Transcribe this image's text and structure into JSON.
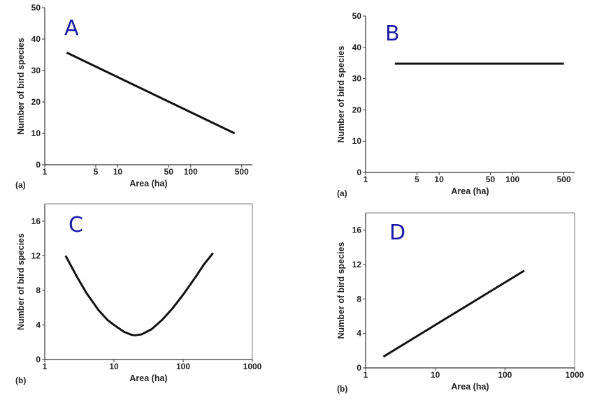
{
  "chart_data": [
    {
      "type": "line",
      "panel_label": "A",
      "subfigure_label": "(a)",
      "xlabel": "Area (ha)",
      "ylabel": "Number of bird species",
      "x_scale": "log",
      "xlim": [
        1,
        700
      ],
      "ylim": [
        0,
        50
      ],
      "x_ticks": [
        1,
        5,
        10,
        50,
        100,
        500
      ],
      "y_ticks": [
        0,
        10,
        20,
        30,
        40,
        50
      ],
      "series": [
        {
          "x": [
            2,
            400
          ],
          "y": [
            35.7,
            10
          ]
        }
      ]
    },
    {
      "type": "line",
      "panel_label": "B",
      "subfigure_label": "(a)",
      "xlabel": "Area (ha)",
      "ylabel": "Number of bird species",
      "x_scale": "log",
      "xlim": [
        1,
        700
      ],
      "ylim": [
        0,
        50
      ],
      "x_ticks": [
        1,
        5,
        10,
        50,
        100,
        500
      ],
      "y_ticks": [
        0,
        10,
        20,
        30,
        40,
        50
      ],
      "series": [
        {
          "x": [
            2.5,
            500
          ],
          "y": [
            34.8,
            34.8
          ]
        }
      ]
    },
    {
      "type": "line",
      "panel_label": "C",
      "subfigure_label": "(b)",
      "xlabel": "Area (ha)",
      "ylabel": "Number of bird species",
      "x_scale": "log",
      "xlim": [
        1,
        1000
      ],
      "ylim": [
        0,
        18
      ],
      "x_ticks": [
        1,
        10,
        100,
        1000
      ],
      "y_ticks": [
        0,
        4,
        8,
        12,
        16
      ],
      "series": [
        {
          "x": [
            2,
            3,
            4,
            6,
            8,
            10,
            14,
            18,
            20,
            25,
            35,
            50,
            70,
            100,
            150,
            200,
            270
          ],
          "y": [
            12.0,
            9.4,
            7.7,
            5.7,
            4.6,
            4.0,
            3.2,
            2.85,
            2.8,
            2.9,
            3.5,
            4.6,
            5.9,
            7.5,
            9.5,
            11.0,
            12.3
          ]
        }
      ]
    },
    {
      "type": "line",
      "panel_label": "D",
      "subfigure_label": "(b)",
      "xlabel": "Area (ha)",
      "ylabel": "Number of bird species",
      "x_scale": "log",
      "xlim": [
        1,
        1000
      ],
      "ylim": [
        0,
        18
      ],
      "x_ticks": [
        1,
        10,
        100,
        1000
      ],
      "y_ticks": [
        0,
        4,
        8,
        12,
        16
      ],
      "series": [
        {
          "x": [
            1.8,
            190
          ],
          "y": [
            1.3,
            11.3
          ]
        }
      ]
    }
  ]
}
